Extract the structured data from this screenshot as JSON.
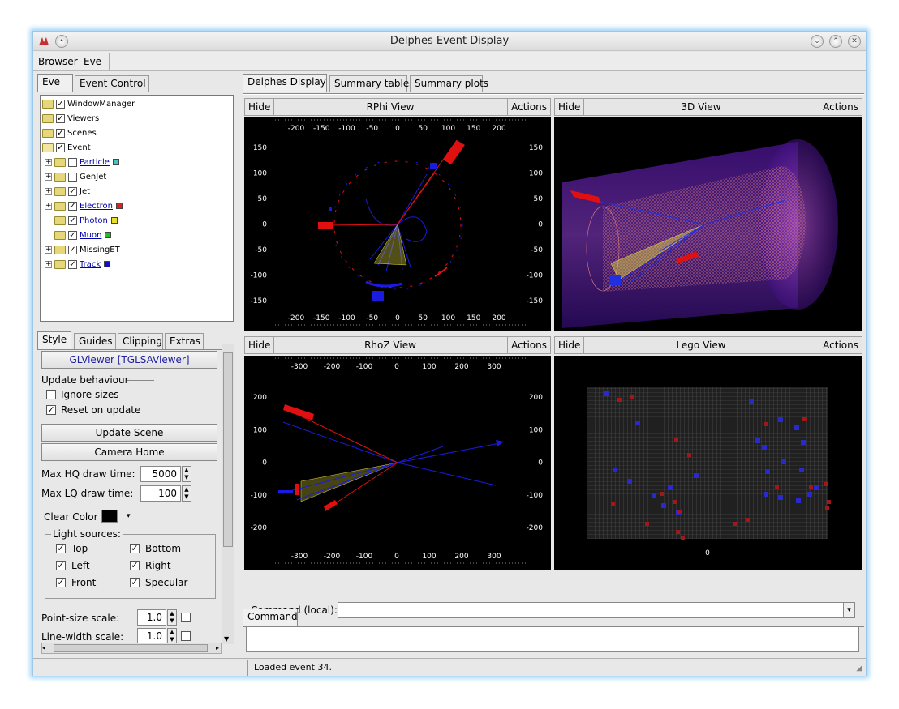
{
  "window": {
    "title": "Delphes Event Display"
  },
  "menu": {
    "browser": "Browser",
    "eve": "Eve"
  },
  "left_tabs": {
    "eve": "Eve",
    "event_control": "Event Control"
  },
  "tree": {
    "items": [
      {
        "label": "WindowManager",
        "checked": true
      },
      {
        "label": "Viewers",
        "checked": true
      },
      {
        "label": "Scenes",
        "checked": true
      },
      {
        "label": "Event",
        "checked": true
      },
      {
        "label": "Particle",
        "checked": false,
        "color": "#40c8c8"
      },
      {
        "label": "GenJet",
        "checked": false
      },
      {
        "label": "Jet",
        "checked": true
      },
      {
        "label": "Electron",
        "checked": true,
        "color": "#e02020"
      },
      {
        "label": "Photon",
        "checked": true,
        "color": "#e8e020"
      },
      {
        "label": "Muon",
        "checked": true,
        "color": "#20c020"
      },
      {
        "label": "MissingET",
        "checked": true
      },
      {
        "label": "Track",
        "checked": true,
        "color": "#1010c0"
      }
    ]
  },
  "editor_tabs": {
    "style": "Style",
    "guides": "Guides",
    "clipping": "Clipping",
    "extras": "Extras"
  },
  "editor": {
    "viewer_button": "GLViewer [TGLSAViewer]",
    "update_behaviour": "Update behaviour",
    "ignore_sizes": "Ignore sizes",
    "reset_on_update": "Reset on update",
    "update_scene": "Update Scene",
    "camera_home": "Camera Home",
    "max_hq_label": "Max HQ draw time:",
    "max_hq_value": "5000",
    "max_lq_label": "Max LQ draw time:",
    "max_lq_value": "100",
    "clear_color": "Clear Color",
    "light_sources": "Light sources:",
    "top": "Top",
    "bottom": "Bottom",
    "left": "Left",
    "right": "Right",
    "front": "Front",
    "specular": "Specular",
    "point_size_label": "Point-size scale:",
    "point_size_value": "1.0",
    "line_width_label": "Line-width scale:",
    "line_width_value": "1.0"
  },
  "main_tabs": {
    "display": "Delphes Display",
    "tables": "Summary tables",
    "plots": "Summary plots"
  },
  "views": {
    "hide": "Hide",
    "actions": "Actions",
    "rphi": "RPhi View",
    "three_d": "3D View",
    "rhoz": "RhoZ View",
    "lego": "Lego View"
  },
  "rphi_axis": {
    "x_ticks": [
      "-200",
      "-150",
      "-100",
      "-50",
      "0",
      "50",
      "100",
      "150",
      "200"
    ],
    "y_ticks": [
      "150",
      "100",
      "50",
      "0",
      "-50",
      "-100",
      "-150"
    ]
  },
  "rhoz_axis": {
    "x_ticks": [
      "-300",
      "-200",
      "-100",
      "0",
      "100",
      "200",
      "300"
    ],
    "y_ticks": [
      "200",
      "100",
      "0",
      "-100",
      "-200"
    ]
  },
  "lego_axis": {
    "zero": "0"
  },
  "command": {
    "tab": "Command",
    "label": "Command (local):",
    "value": ""
  },
  "status": {
    "message": "Loaded event 34."
  },
  "colors": {
    "track": "#1a1ae0",
    "electron": "#e01010",
    "jet": "#e8e040",
    "background": "#000000"
  }
}
